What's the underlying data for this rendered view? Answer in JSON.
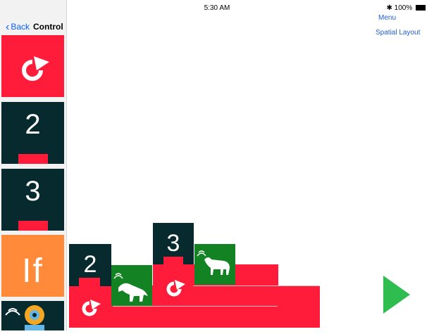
{
  "status_bar": {
    "device": "iPad",
    "time": "5:30 AM",
    "battery": "100%"
  },
  "nav": {
    "back_label": "Back",
    "title": "Control"
  },
  "right_links": {
    "menu": "Menu",
    "spatial": "Spatial Layout"
  },
  "palette": {
    "items": [
      {
        "label": "",
        "type": "repeat-icon"
      },
      {
        "label": "2"
      },
      {
        "label": "3"
      },
      {
        "label": "If"
      },
      {
        "label": "",
        "type": "robot-icon"
      }
    ]
  },
  "program": {
    "repeat_two_label": "2",
    "repeat_three_label": "3"
  },
  "icons": {
    "repeat": "repeat-arrow-icon",
    "dinosaur": "dinosaur-sound-icon",
    "goat": "goat-sound-icon",
    "play": "play-icon"
  },
  "colors": {
    "red": "#ff1b3a",
    "dark": "#062a2e",
    "green": "#138223",
    "orange": "#ff8a3a",
    "play": "#2ebd4e",
    "link": "#1f5dd6"
  }
}
